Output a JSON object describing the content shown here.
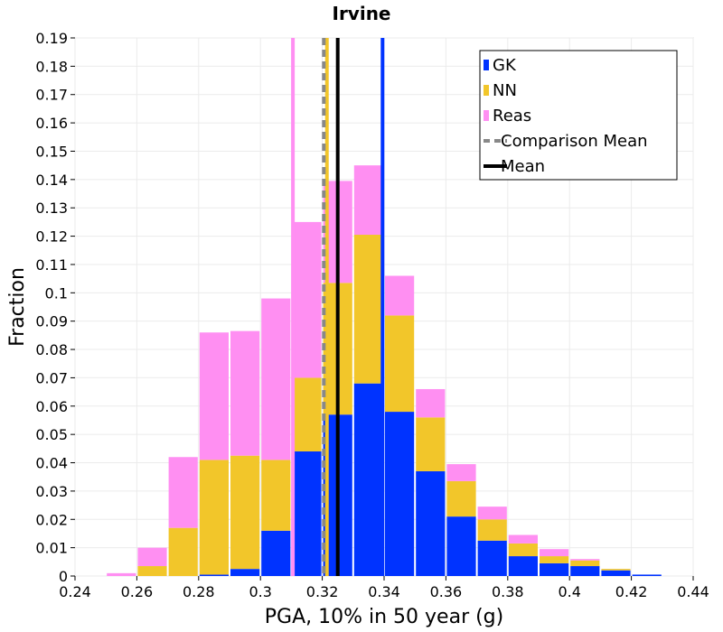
{
  "chart_data": {
    "type": "bar",
    "title": "Irvine",
    "xlabel": "PGA, 10% in 50 year (g)",
    "ylabel": "Fraction",
    "xlim": [
      0.24,
      0.44
    ],
    "ylim": [
      0,
      0.19
    ],
    "grid": true,
    "stacked": true,
    "bin_width": 0.01,
    "bin_starts": [
      0.24,
      0.25,
      0.26,
      0.27,
      0.28,
      0.29,
      0.3,
      0.31,
      0.32,
      0.33,
      0.34,
      0.35,
      0.36,
      0.37,
      0.38,
      0.39,
      0.4,
      0.41,
      0.42
    ],
    "series": [
      {
        "name": "GK",
        "color": "#0033ff",
        "values": [
          0,
          0,
          0,
          0,
          0.0005,
          0.0025,
          0.016,
          0.044,
          0.057,
          0.068,
          0.058,
          0.037,
          0.021,
          0.0125,
          0.007,
          0.0045,
          0.0035,
          0.002,
          0.0005
        ]
      },
      {
        "name": "NN",
        "color": "#f2c62a",
        "values": [
          0,
          0,
          0.0035,
          0.017,
          0.0405,
          0.04,
          0.025,
          0.026,
          0.0465,
          0.0525,
          0.034,
          0.019,
          0.0125,
          0.0075,
          0.0045,
          0.0025,
          0.002,
          0.0005,
          0
        ]
      },
      {
        "name": "Reas",
        "color": "#ff8ff2",
        "values": [
          0,
          0.001,
          0.0065,
          0.025,
          0.045,
          0.044,
          0.057,
          0.055,
          0.036,
          0.0245,
          0.014,
          0.01,
          0.006,
          0.0045,
          0.003,
          0.0025,
          0.0005,
          0,
          0
        ]
      }
    ],
    "lines": [
      {
        "name": "GK",
        "x": 0.3395,
        "color": "#0033ff",
        "style": "solid"
      },
      {
        "name": "NN",
        "x": 0.3215,
        "color": "#f2c62a",
        "style": "solid"
      },
      {
        "name": "Reas",
        "x": 0.3105,
        "color": "#ff8ff2",
        "style": "solid"
      },
      {
        "name": "Comparison Mean",
        "x": 0.3205,
        "color": "#888888",
        "style": "dashed"
      },
      {
        "name": "Mean",
        "x": 0.325,
        "color": "#000000",
        "style": "solid"
      }
    ],
    "x_ticks": [
      "0.24",
      "0.26",
      "0.28",
      "0.3",
      "0.32",
      "0.34",
      "0.36",
      "0.38",
      "0.4",
      "0.42",
      "0.44"
    ],
    "y_ticks": [
      "0",
      "0.01",
      "0.02",
      "0.03",
      "0.04",
      "0.05",
      "0.06",
      "0.07",
      "0.08",
      "0.09",
      "0.1",
      "0.11",
      "0.12",
      "0.13",
      "0.14",
      "0.15",
      "0.16",
      "0.17",
      "0.18",
      "0.19"
    ],
    "legend": {
      "position": "top-right",
      "entries": [
        {
          "label": "GK",
          "color": "#0033ff",
          "kind": "patch"
        },
        {
          "label": "NN",
          "color": "#f2c62a",
          "kind": "patch"
        },
        {
          "label": "Reas",
          "color": "#ff8ff2",
          "kind": "patch"
        },
        {
          "label": "Comparison Mean",
          "color": "#888888",
          "kind": "dashed-line"
        },
        {
          "label": "Mean",
          "color": "#000000",
          "kind": "line"
        }
      ]
    }
  }
}
